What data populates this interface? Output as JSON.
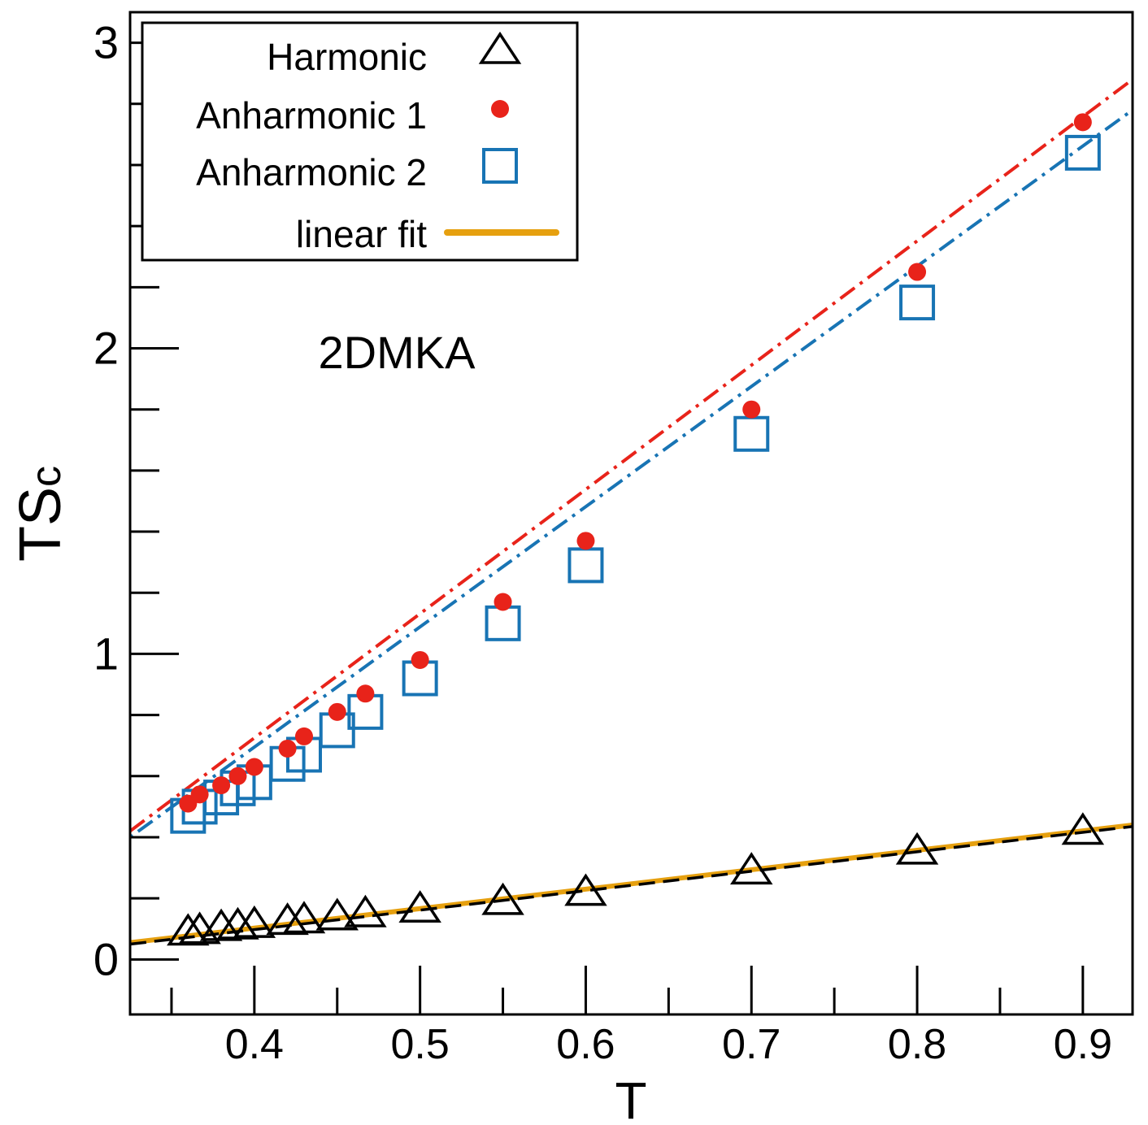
{
  "chart_data": {
    "type": "scatter",
    "title": "",
    "annotation": "2DMKA",
    "xlabel": "T",
    "ylabel_main": "TS",
    "ylabel_sub": "c",
    "xlim": [
      0.325,
      0.93
    ],
    "ylim": [
      -0.18,
      3.1
    ],
    "x_ticks": [
      "0.4",
      "0.5",
      "0.6",
      "0.7",
      "0.8",
      "0.9"
    ],
    "x_tick_values": [
      0.4,
      0.5,
      0.6,
      0.7,
      0.8,
      0.9
    ],
    "x_minor_ticks": [
      0.35,
      0.45,
      0.55,
      0.65,
      0.75,
      0.85
    ],
    "y_ticks": [
      "0",
      "1",
      "2",
      "3"
    ],
    "y_tick_values": [
      0,
      1,
      2,
      3
    ],
    "y_minor_ticks": [
      0.2,
      0.4,
      0.6,
      0.8,
      1.2,
      1.4,
      1.6,
      1.8,
      2.2,
      2.4,
      2.6,
      2.8
    ],
    "legend_position": "top-left",
    "series": [
      {
        "name": "Harmonic",
        "marker": "triangle-open",
        "color": "#000000",
        "x": [
          0.36,
          0.367,
          0.38,
          0.39,
          0.4,
          0.42,
          0.43,
          0.45,
          0.467,
          0.5,
          0.55,
          0.6,
          0.7,
          0.8,
          0.9
        ],
        "y": [
          0.09,
          0.095,
          0.105,
          0.11,
          0.115,
          0.125,
          0.13,
          0.14,
          0.15,
          0.165,
          0.19,
          0.22,
          0.29,
          0.355,
          0.42
        ]
      },
      {
        "name": "Anharmonic 1",
        "marker": "circle-filled",
        "color": "#e8231a",
        "x": [
          0.36,
          0.367,
          0.38,
          0.39,
          0.4,
          0.42,
          0.43,
          0.45,
          0.467,
          0.5,
          0.55,
          0.6,
          0.7,
          0.8,
          0.9
        ],
        "y": [
          0.51,
          0.54,
          0.57,
          0.6,
          0.63,
          0.69,
          0.73,
          0.81,
          0.87,
          0.98,
          1.17,
          1.37,
          1.8,
          2.25,
          2.74
        ]
      },
      {
        "name": "Anharmonic 2",
        "marker": "square-open",
        "color": "#1874b4",
        "x": [
          0.36,
          0.367,
          0.38,
          0.39,
          0.4,
          0.42,
          0.43,
          0.45,
          0.467,
          0.5,
          0.55,
          0.6,
          0.7,
          0.8,
          0.9
        ],
        "y": [
          0.47,
          0.5,
          0.53,
          0.56,
          0.58,
          0.64,
          0.67,
          0.75,
          0.81,
          0.92,
          1.1,
          1.29,
          1.72,
          2.15,
          2.64
        ]
      }
    ],
    "fit_curves": [
      {
        "name": "Anharmonic 1 fit",
        "style": "red-dash-dot",
        "color": "#e8231a",
        "x": [
          0.325,
          0.93
        ],
        "y": [
          0.42,
          2.88
        ]
      },
      {
        "name": "Anharmonic 2 fit",
        "style": "blue-dash-dot",
        "color": "#1874b4",
        "x": [
          0.325,
          0.93
        ],
        "y": [
          0.4,
          2.78
        ]
      },
      {
        "name": "linear fit",
        "style": "orange-solid",
        "color": "#e6a00f",
        "x": [
          0.325,
          0.93
        ],
        "y": [
          0.055,
          0.44
        ]
      },
      {
        "name": "Harmonic dashed fit",
        "style": "black-dashed",
        "color": "#000000",
        "x": [
          0.325,
          0.93
        ],
        "y": [
          0.05,
          0.435
        ]
      }
    ],
    "legend": [
      {
        "label": "Harmonic",
        "marker": "triangle-open",
        "color": "#000000"
      },
      {
        "label": "Anharmonic 1",
        "marker": "circle-filled",
        "color": "#e8231a"
      },
      {
        "label": "Anharmonic 2",
        "marker": "square-open",
        "color": "#1874b4"
      },
      {
        "label": "linear fit",
        "marker": "line",
        "color": "#e6a00f"
      }
    ]
  }
}
